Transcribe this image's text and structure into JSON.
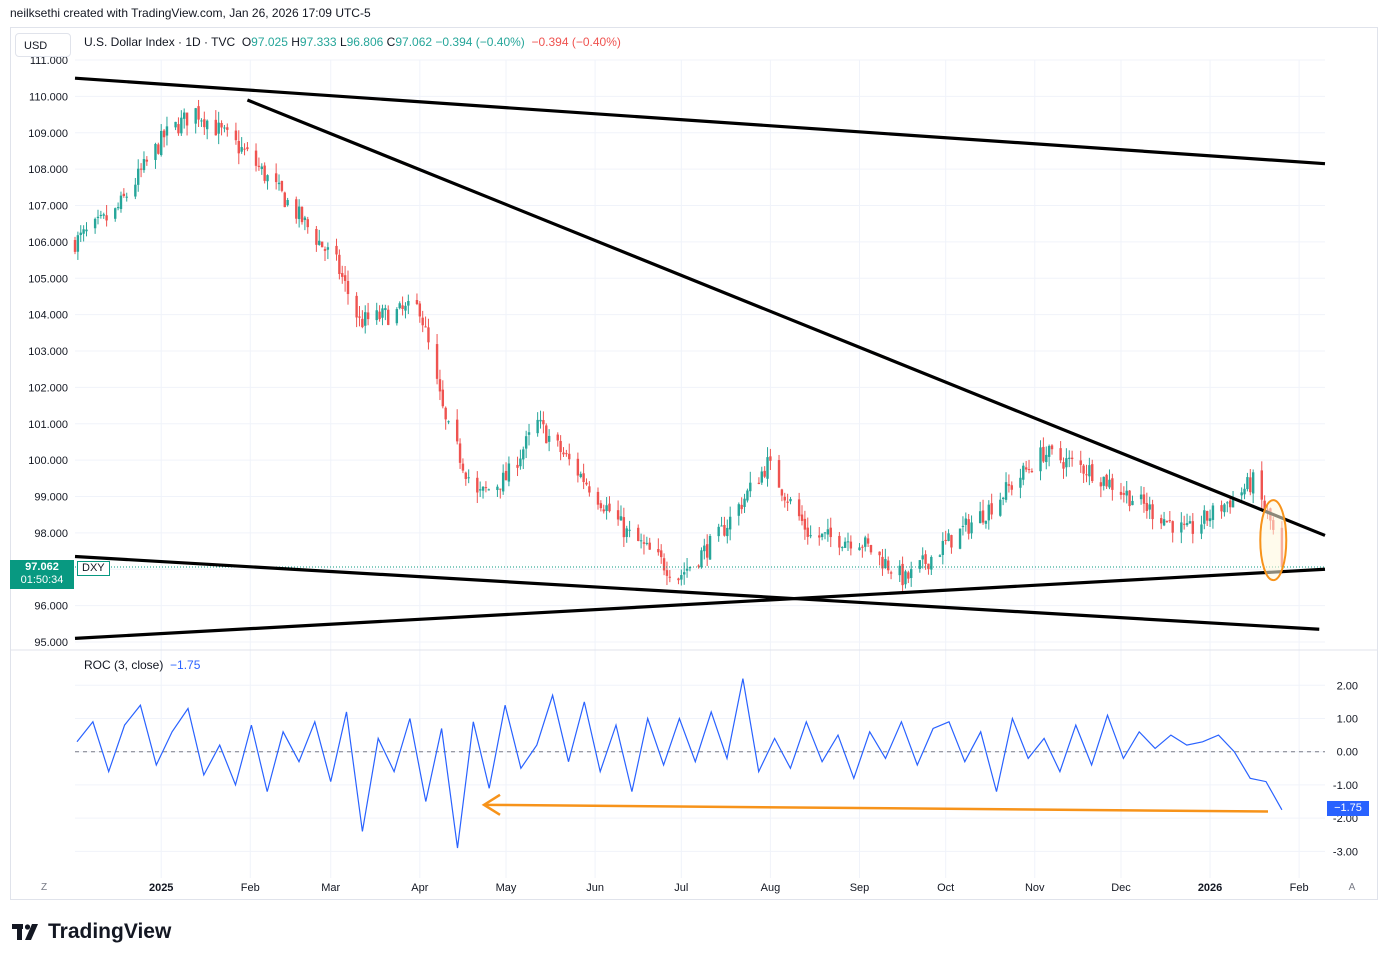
{
  "header": {
    "text": "neilksethi created with TradingView.com, Jan 26, 2026 17:09 UTC-5"
  },
  "currency_button": {
    "label": "USD"
  },
  "legend": {
    "symbol": "U.S. Dollar Index · 1D · TVC",
    "open_label": "O",
    "open": "97.025",
    "high_label": "H",
    "high": "97.333",
    "low_label": "L",
    "low": "96.806",
    "close_label": "C",
    "close": "97.062",
    "change": "−0.394 (−0.40%)",
    "change2": "−0.394 (−0.40%)"
  },
  "price_tag": {
    "price": "97.062",
    "countdown": "01:50:34",
    "ticker": "DXY"
  },
  "roc_legend": {
    "name": "ROC (3, close)",
    "value": "−1.75"
  },
  "roc_tag": {
    "value": "−1.75"
  },
  "axis_controls": {
    "left": "Z",
    "right": "A"
  },
  "footer": {
    "brand": "TradingView"
  },
  "colors": {
    "up": "#26a69a",
    "down": "#ef5350",
    "roc": "#2962ff",
    "trendline": "#000000",
    "annotation": "#f7931a",
    "highlight_fill": "#fff8dc"
  },
  "chart_data": [
    {
      "type": "candlestick",
      "title": "U.S. Dollar Index · 1D · TVC",
      "x_ticks": [
        "2025",
        "Feb",
        "Mar",
        "Apr",
        "May",
        "Jun",
        "Jul",
        "Aug",
        "Sep",
        "Oct",
        "Nov",
        "Dec",
        "2026",
        "Feb"
      ],
      "y_ticks": [
        "95.000",
        "96.000",
        "97.000",
        "98.000",
        "99.000",
        "100.000",
        "101.000",
        "102.000",
        "103.000",
        "104.000",
        "105.000",
        "106.000",
        "107.000",
        "108.000",
        "109.000",
        "110.000",
        "111.000"
      ],
      "ylim": [
        95,
        111
      ],
      "x": [
        "2024-12-02",
        "2024-12-16",
        "2025-01-02",
        "2025-01-13",
        "2025-01-31",
        "2025-02-15",
        "2025-03-03",
        "2025-03-11",
        "2025-04-01",
        "2025-04-10",
        "2025-04-21",
        "2025-05-01",
        "2025-05-12",
        "2025-05-30",
        "2025-06-12",
        "2025-06-30",
        "2025-07-14",
        "2025-07-31",
        "2025-08-15",
        "2025-09-01",
        "2025-09-17",
        "2025-10-01",
        "2025-10-15",
        "2025-11-04",
        "2025-11-21",
        "2025-12-08",
        "2025-12-24",
        "2026-01-08",
        "2026-01-16",
        "2026-01-22",
        "2026-01-26"
      ],
      "close": [
        106.0,
        106.8,
        108.9,
        109.6,
        108.4,
        107.0,
        105.4,
        103.8,
        104.2,
        101.0,
        99.0,
        99.5,
        101.0,
        99.3,
        98.0,
        96.8,
        97.9,
        99.9,
        97.9,
        97.8,
        96.7,
        97.7,
        98.6,
        100.2,
        99.7,
        98.8,
        98.0,
        98.9,
        99.4,
        98.3,
        97.062
      ],
      "trendlines": [
        {
          "from": [
            "2024-12-02",
            110.5
          ],
          "to": [
            "2026-02-10",
            108.15
          ]
        },
        {
          "from": [
            "2025-01-31",
            109.9
          ],
          "to": [
            "2026-02-10",
            97.93
          ]
        },
        {
          "from": [
            "2024-12-02",
            95.1
          ],
          "to": [
            "2026-02-10",
            97.0
          ]
        },
        {
          "from": [
            "2024-12-02",
            97.35
          ],
          "to": [
            "2026-02-08",
            95.35
          ]
        }
      ],
      "current_price": 97.062
    },
    {
      "type": "line",
      "title": "ROC (3, close)",
      "y_ticks": [
        "2.00",
        "1.00",
        "0.00",
        "-1.00",
        "-2.00",
        "-3.00"
      ],
      "ylim": [
        -3.2,
        2.4
      ],
      "series": [
        {
          "name": "ROC (3, close)",
          "values": [
            0.3,
            0.9,
            -0.6,
            0.8,
            1.4,
            -0.4,
            0.6,
            1.3,
            -0.7,
            0.2,
            -1.0,
            0.8,
            -1.2,
            0.6,
            -0.3,
            0.9,
            -0.9,
            1.2,
            -2.4,
            0.4,
            -0.6,
            1.0,
            -1.5,
            0.7,
            -2.9,
            0.9,
            -1.1,
            1.4,
            -0.5,
            0.2,
            1.7,
            -0.3,
            1.5,
            -0.6,
            0.8,
            -1.2,
            1.0,
            -0.4,
            1.0,
            -0.3,
            1.2,
            -0.2,
            2.2,
            -0.6,
            0.4,
            -0.5,
            0.9,
            -0.3,
            0.5,
            -0.8,
            0.6,
            -0.2,
            0.9,
            -0.4,
            0.7,
            0.9,
            -0.3,
            0.6,
            -1.2,
            1.0,
            -0.2,
            0.4,
            -0.6,
            0.8,
            -0.4,
            1.1,
            -0.2,
            0.6,
            0.1,
            0.5,
            0.2,
            0.3,
            0.5,
            0.0,
            -0.8,
            -0.9,
            -1.75
          ]
        }
      ],
      "current_value": -1.75
    }
  ]
}
